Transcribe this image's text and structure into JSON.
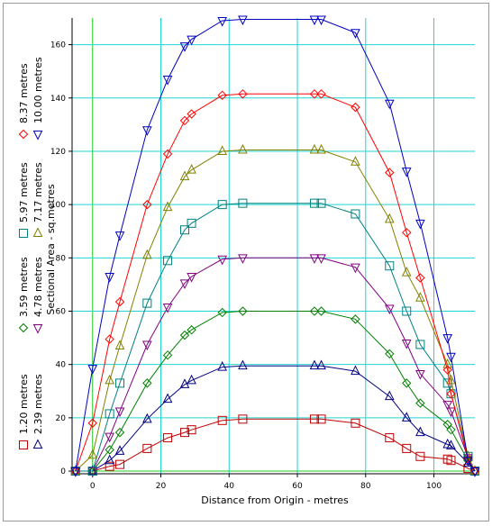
{
  "chart_data": {
    "type": "line",
    "xlabel": "Distance from Origin - metres",
    "ylabel": "Sectional Area - sq.metres",
    "xlim": [
      -6,
      112
    ],
    "ylim": [
      -1,
      170
    ],
    "x_ticks": [
      0,
      20,
      40,
      60,
      80,
      100
    ],
    "y_ticks": [
      0,
      20,
      40,
      60,
      80,
      100,
      120,
      140,
      160
    ],
    "grid": true,
    "legend_position": "left (rotated)",
    "series": [
      {
        "name": "1.20 metres",
        "color": "#c00000",
        "marker": "square",
        "x": [
          -5,
          0,
          5,
          8,
          16,
          22,
          27,
          29,
          38,
          44,
          65,
          67,
          77,
          87,
          92,
          96,
          104,
          105,
          110,
          112
        ],
        "y": [
          0,
          0,
          1.8,
          2.5,
          8.5,
          12.5,
          14.5,
          15.5,
          19,
          19.5,
          19.5,
          19.5,
          18,
          12.5,
          8.5,
          5.5,
          4.5,
          4,
          1,
          0
        ]
      },
      {
        "name": "2.39 metres",
        "color": "#000080",
        "marker": "triangle-up",
        "x": [
          -5,
          0,
          5,
          8,
          16,
          22,
          27,
          29,
          38,
          44,
          65,
          67,
          77,
          87,
          92,
          96,
          104,
          105,
          110,
          112
        ],
        "y": [
          0,
          0,
          4,
          7.5,
          19.5,
          27,
          32.5,
          34,
          39,
          39.5,
          39.5,
          39.5,
          37.5,
          28,
          20,
          14.5,
          10,
          9.5,
          3,
          0
        ]
      },
      {
        "name": "3.59 metres",
        "color": "#008000",
        "marker": "diamond",
        "x": [
          -5,
          0,
          5,
          8,
          16,
          22,
          27,
          29,
          38,
          44,
          65,
          67,
          77,
          87,
          92,
          96,
          104,
          105,
          110,
          112
        ],
        "y": [
          0,
          0,
          8,
          14.5,
          33,
          43.5,
          51,
          53,
          59.5,
          60,
          60,
          60,
          57,
          44,
          33,
          25.5,
          17.5,
          15.5,
          4,
          0
        ]
      },
      {
        "name": "4.78 metres",
        "color": "#800080",
        "marker": "triangle-down",
        "x": [
          -5,
          0,
          5,
          8,
          16,
          22,
          27,
          29,
          38,
          44,
          65,
          67,
          77,
          87,
          92,
          96,
          104,
          105,
          110,
          112
        ],
        "y": [
          0,
          0,
          13,
          22.5,
          47.5,
          61.5,
          70.5,
          73,
          79.5,
          80,
          80,
          80,
          76.5,
          61,
          48,
          36.5,
          25,
          22.5,
          5,
          0
        ]
      },
      {
        "name": "5.97 metres",
        "color": "#008080",
        "marker": "square",
        "x": [
          -5,
          0,
          5,
          8,
          16,
          22,
          27,
          29,
          38,
          44,
          65,
          67,
          77,
          87,
          92,
          96,
          104,
          105,
          110,
          112
        ],
        "y": [
          0,
          0,
          21.5,
          33,
          63,
          79,
          90.5,
          93,
          100,
          100.5,
          100.5,
          100.5,
          96.5,
          77,
          60,
          47.5,
          33,
          29,
          5.5,
          0
        ]
      },
      {
        "name": "7.17 metres",
        "color": "#808000",
        "marker": "triangle-up",
        "x": [
          -5,
          0,
          5,
          8,
          16,
          22,
          27,
          29,
          38,
          44,
          65,
          67,
          77,
          87,
          92,
          96,
          104,
          105,
          110,
          112
        ],
        "y": [
          0,
          6,
          34,
          47,
          81,
          99,
          110.5,
          113,
          120,
          120.5,
          120.5,
          120.5,
          116,
          94.5,
          74.5,
          65,
          40,
          34,
          5.5,
          0
        ]
      },
      {
        "name": "8.37 metres",
        "color": "#ff0000",
        "marker": "diamond",
        "x": [
          -5,
          0,
          5,
          8,
          16,
          22,
          27,
          29,
          38,
          44,
          65,
          67,
          77,
          87,
          92,
          96,
          104,
          105,
          110,
          112
        ],
        "y": [
          0,
          18,
          49.5,
          63.5,
          100,
          119,
          131.5,
          134,
          141,
          141.5,
          141.5,
          141.5,
          136.5,
          112,
          89.5,
          72.5,
          38,
          29,
          4.5,
          0
        ]
      },
      {
        "name": "10.00 metres",
        "color": "#0000c0",
        "marker": "triangle-down",
        "x": [
          -5,
          0,
          5,
          8,
          16,
          22,
          27,
          29,
          38,
          44,
          65,
          67,
          77,
          87,
          92,
          96,
          104,
          105,
          110,
          112
        ],
        "y": [
          0,
          38.5,
          73,
          88.5,
          128,
          147,
          159.5,
          162,
          169,
          169.5,
          169.5,
          169.5,
          164.5,
          138,
          112.5,
          93,
          50,
          43,
          4,
          0
        ]
      }
    ]
  }
}
